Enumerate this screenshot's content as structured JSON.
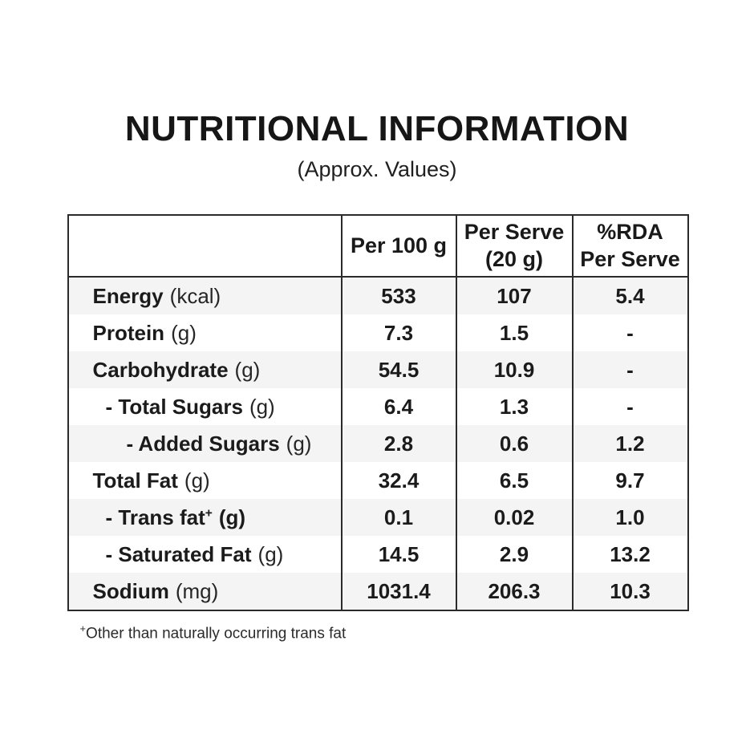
{
  "title": "NUTRITIONAL INFORMATION",
  "subtitle": "(Approx. Values)",
  "colors": {
    "border": "#2b2b2b",
    "stripe": "#f4f4f4",
    "text": "#1b1b1b",
    "background": "#ffffff"
  },
  "table": {
    "header": {
      "label_col": "",
      "per100": "Per 100 g",
      "perserve_line1": "Per Serve",
      "perserve_line2": "(20 g)",
      "rda_line1": "%RDA",
      "rda_line2": "Per Serve"
    },
    "rows": [
      {
        "name": "Energy",
        "sup": "",
        "unit": "(kcal)",
        "per100": "533",
        "perServe": "107",
        "rda": "5.4"
      },
      {
        "name": "Protein",
        "sup": "",
        "unit": "(g)",
        "per100": "7.3",
        "perServe": "1.5",
        "rda": "-"
      },
      {
        "name": "Carbohydrate",
        "sup": "",
        "unit": "(g)",
        "per100": "54.5",
        "perServe": "10.9",
        "rda": "-"
      },
      {
        "name": "- Total Sugars",
        "sup": "",
        "unit": "(g)",
        "per100": "6.4",
        "perServe": "1.3",
        "rda": "-"
      },
      {
        "name": "- Added Sugars",
        "sup": "",
        "unit": "(g)",
        "per100": "2.8",
        "perServe": "0.6",
        "rda": "1.2"
      },
      {
        "name": "Total Fat",
        "sup": "",
        "unit": "(g)",
        "per100": "32.4",
        "perServe": "6.5",
        "rda": "9.7"
      },
      {
        "name": "- Trans fat",
        "sup": "+",
        "unit": "(g)",
        "per100": "0.1",
        "perServe": "0.02",
        "rda": "1.0"
      },
      {
        "name": "- Saturated Fat",
        "sup": "",
        "unit": "(g)",
        "per100": "14.5",
        "perServe": "2.9",
        "rda": "13.2"
      },
      {
        "name": "Sodium",
        "sup": "",
        "unit": "(mg)",
        "per100": "1031.4",
        "perServe": "206.3",
        "rda": "10.3"
      }
    ]
  },
  "footnote": {
    "sup": "+",
    "text": "Other than naturally occurring trans fat"
  }
}
